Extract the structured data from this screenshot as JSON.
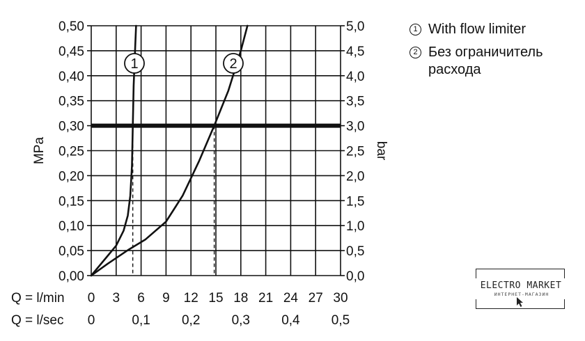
{
  "chart_data": {
    "type": "line",
    "left_axis": {
      "label": "MPa",
      "ticks": [
        "0,00",
        "0,05",
        "0,10",
        "0,15",
        "0,20",
        "0,25",
        "0,30",
        "0,35",
        "0,40",
        "0,45",
        "0,50"
      ],
      "range": [
        0,
        0.5
      ]
    },
    "right_axis": {
      "label": "bar",
      "ticks": [
        "0,0",
        "0,5",
        "1,0",
        "1,5",
        "2,0",
        "2,5",
        "3,0",
        "3,5",
        "4,0",
        "4,5",
        "5,0"
      ],
      "range": [
        0,
        5
      ]
    },
    "x_axis_lmin": {
      "label": "Q = l/min",
      "ticks": [
        "0",
        "3",
        "6",
        "9",
        "12",
        "15",
        "18",
        "21",
        "24",
        "27",
        "30"
      ],
      "range": [
        0,
        30
      ]
    },
    "x_axis_lsec": {
      "label": "Q = l/sec",
      "ticks": [
        "0",
        "0,1",
        "0,2",
        "0,3",
        "0,4",
        "0,5"
      ],
      "range": [
        0,
        0.5
      ]
    },
    "grid": true,
    "reference_pressure": 0.3,
    "series": [
      {
        "id": "1",
        "label_marker": "1",
        "x": [
          0,
          1.5,
          3,
          3.9,
          4.4,
          4.7,
          4.9,
          5.0,
          5.1,
          5.3,
          5.4
        ],
        "y": [
          0,
          0.03,
          0.06,
          0.09,
          0.12,
          0.16,
          0.22,
          0.3,
          0.38,
          0.46,
          0.5
        ],
        "drop_at_y": 0.3,
        "drop_x": 5.0
      },
      {
        "id": "2",
        "label_marker": "2",
        "x": [
          0,
          2,
          4.5,
          6.5,
          9,
          11,
          13,
          14.8,
          16.5,
          18,
          18.8
        ],
        "y": [
          0,
          0.024,
          0.052,
          0.072,
          0.108,
          0.16,
          0.23,
          0.3,
          0.37,
          0.45,
          0.5
        ],
        "drop_at_y": 0.3,
        "drop_x": 14.8
      }
    ]
  },
  "legend": [
    {
      "num": "1",
      "text": "With flow limiter"
    },
    {
      "num": "2",
      "text": "Без ограничитель расхода"
    }
  ],
  "logo": {
    "title": "ELECTRO MARKET",
    "subtitle": "ИНТЕРНЕТ-МАГАЗИН"
  }
}
